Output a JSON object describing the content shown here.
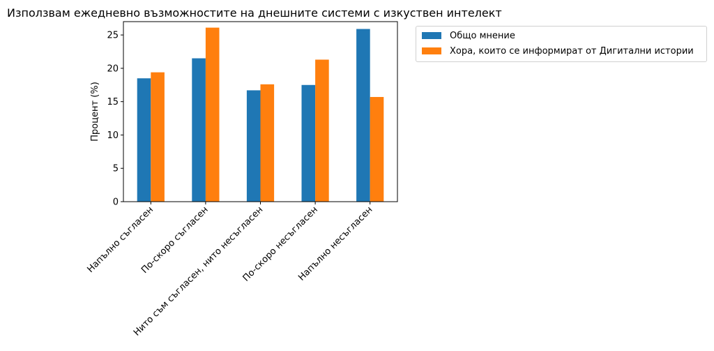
{
  "chart_data": {
    "type": "bar",
    "title": "Използвам ежедневно възможностите на днешните системи с изкуствен интелект",
    "xlabel": "",
    "ylabel": "Процент (%)",
    "ylim": [
      0,
      27
    ],
    "yticks": [
      0,
      5,
      10,
      15,
      20,
      25
    ],
    "grid": false,
    "legend_position": "outside-top-right",
    "categories": [
      "Напълно съгласен",
      "По-скоро съгласен",
      "Нито съм съгласен, нито несъгласен",
      "По-скоро несъгласен",
      "Напълно несъгласен"
    ],
    "series": [
      {
        "name": "Общо мнение",
        "color": "#1f77b4",
        "values": [
          18.5,
          21.5,
          16.7,
          17.5,
          25.9
        ]
      },
      {
        "name": "Хора, които се информират от Дигитални истории",
        "color": "#ff7f0e",
        "values": [
          19.4,
          26.1,
          17.6,
          21.3,
          15.7
        ]
      }
    ]
  }
}
